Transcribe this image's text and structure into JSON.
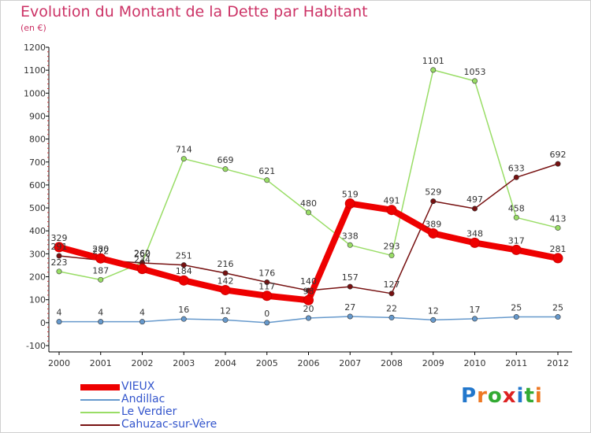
{
  "header": {
    "title": "Evolution du Montant de la Dette par Habitant",
    "unit": "(en €)"
  },
  "logo": {
    "text": "Proxiti",
    "colors": [
      "#2277cc",
      "#ee7722",
      "#33aa33",
      "#dd2222",
      "#2277cc",
      "#33aa33",
      "#ee7722"
    ]
  },
  "chart_data": {
    "type": "line",
    "title": "Evolution du Montant de la Dette par Habitant",
    "subtitle": "(en €)",
    "x": [
      "2000",
      "2001",
      "2002",
      "2003",
      "2004",
      "2005",
      "2006",
      "2007",
      "2008",
      "2009",
      "2010",
      "2011",
      "2012"
    ],
    "ylim": [
      -100,
      1200
    ],
    "yticks": [
      "-100",
      "0",
      "100",
      "200",
      "300",
      "400",
      "500",
      "600",
      "700",
      "800",
      "900",
      "1000",
      "1100",
      "1200"
    ],
    "grid": false,
    "legend_position": "bottom-left",
    "series": [
      {
        "name": "VIEUX",
        "color": "#ee0000",
        "values": [
          329,
          280,
          234,
          184,
          142,
          117,
          98,
          519,
          491,
          389,
          348,
          317,
          281
        ]
      },
      {
        "name": "Andillac",
        "color": "#6699cc",
        "values": [
          4,
          4,
          4,
          16,
          12,
          0,
          20,
          27,
          22,
          12,
          17,
          25,
          25
        ]
      },
      {
        "name": "Le Verdier",
        "color": "#99dd66",
        "values": [
          223,
          187,
          262,
          714,
          669,
          621,
          480,
          338,
          293,
          1101,
          1053,
          458,
          413
        ]
      },
      {
        "name": "Cahuzac-sur-Vère",
        "color": "#771111",
        "values": [
          291,
          272,
          260,
          251,
          216,
          176,
          140,
          157,
          127,
          529,
          497,
          633,
          692
        ]
      }
    ]
  }
}
